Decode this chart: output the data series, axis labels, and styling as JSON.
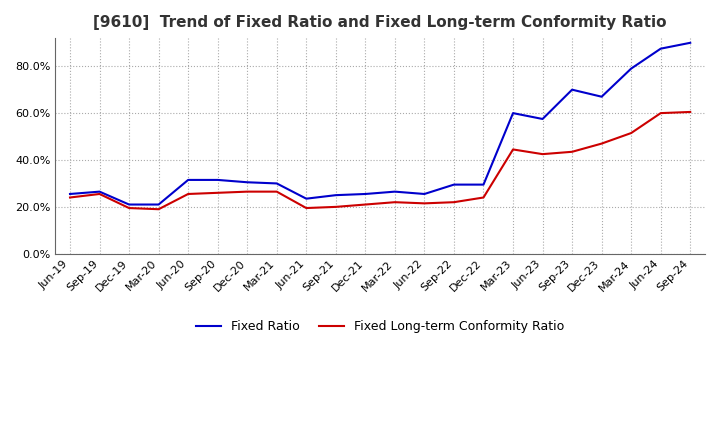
{
  "title": "[9610]  Trend of Fixed Ratio and Fixed Long-term Conformity Ratio",
  "x_labels": [
    "Jun-19",
    "Sep-19",
    "Dec-19",
    "Mar-20",
    "Jun-20",
    "Sep-20",
    "Dec-20",
    "Mar-21",
    "Jun-21",
    "Sep-21",
    "Dec-21",
    "Mar-22",
    "Jun-22",
    "Sep-22",
    "Dec-22",
    "Mar-23",
    "Jun-23",
    "Sep-23",
    "Dec-23",
    "Mar-24",
    "Jun-24",
    "Sep-24"
  ],
  "fixed_ratio": [
    25.5,
    26.5,
    21.0,
    21.0,
    31.5,
    31.5,
    30.5,
    30.0,
    23.5,
    25.0,
    25.5,
    26.5,
    25.5,
    29.5,
    29.5,
    60.0,
    57.5,
    70.0,
    67.0,
    79.0,
    87.5,
    90.0
  ],
  "fixed_lt_ratio": [
    24.0,
    25.5,
    19.5,
    19.0,
    25.5,
    26.0,
    26.5,
    26.5,
    19.5,
    20.0,
    21.0,
    22.0,
    21.5,
    22.0,
    24.0,
    44.5,
    42.5,
    43.5,
    47.0,
    51.5,
    60.0,
    60.5
  ],
  "fixed_ratio_color": "#0000cc",
  "fixed_lt_ratio_color": "#cc0000",
  "plot_bg_color": "#ffffff",
  "fig_bg_color": "#ffffff",
  "grid_color": "#aaaaaa",
  "grid_linestyle": ":",
  "ylim": [
    0,
    92
  ],
  "yticks": [
    0.0,
    20.0,
    40.0,
    60.0,
    80.0
  ],
  "title_fontsize": 11,
  "legend_fontsize": 9,
  "tick_fontsize": 8,
  "line_width": 1.5
}
